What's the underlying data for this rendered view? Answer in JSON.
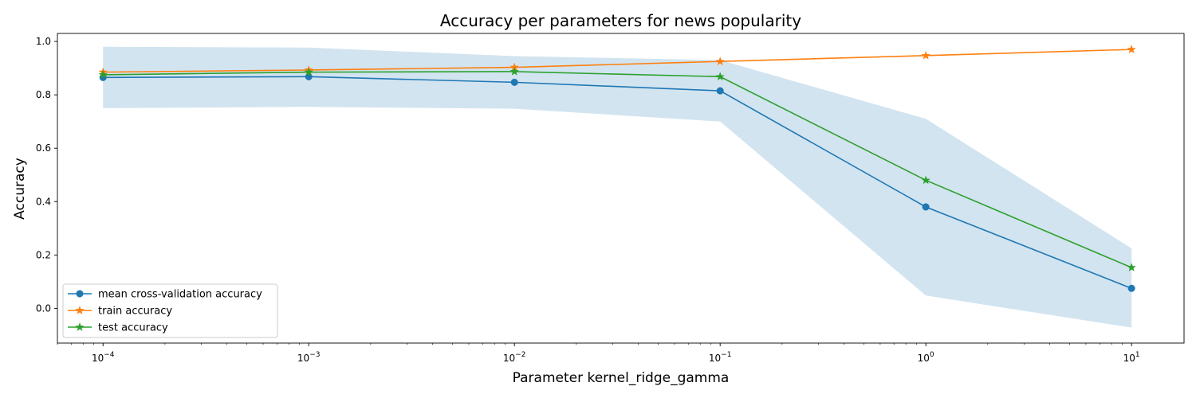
{
  "chart_data": {
    "type": "line",
    "title": "Accuracy per parameters for news popularity",
    "xlabel": "Parameter kernel_ridge_gamma",
    "ylabel": "Accuracy",
    "xscale": "log",
    "x": [
      0.0001,
      0.001,
      0.01,
      0.1,
      1,
      10
    ],
    "x_tick_labels": [
      {
        "base": "10",
        "exp": "−4"
      },
      {
        "base": "10",
        "exp": "−3"
      },
      {
        "base": "10",
        "exp": "−2"
      },
      {
        "base": "10",
        "exp": "−1"
      },
      {
        "base": "10",
        "exp": "0"
      },
      {
        "base": "10",
        "exp": "1"
      }
    ],
    "y_ticks": [
      "0.0",
      "0.2",
      "0.4",
      "0.6",
      "0.8",
      "1.0"
    ],
    "xlim": [
      6e-05,
      18
    ],
    "ylim": [
      -0.13,
      1.03
    ],
    "grid": false,
    "legend_position": "lower-left",
    "band": {
      "lower": [
        0.75,
        0.755,
        0.748,
        0.7,
        0.048,
        -0.072
      ],
      "upper": [
        0.98,
        0.977,
        0.945,
        0.93,
        0.71,
        0.225
      ],
      "color": "#1f77b4"
    },
    "series": [
      {
        "name": "mean cross-validation accuracy",
        "values": [
          0.865,
          0.868,
          0.847,
          0.815,
          0.38,
          0.075
        ],
        "color": "#1f77b4",
        "marker": "circle"
      },
      {
        "name": "train accuracy",
        "values": [
          0.885,
          0.893,
          0.903,
          0.925,
          0.947,
          0.97
        ],
        "color": "#ff7f0e",
        "marker": "star"
      },
      {
        "name": "test accuracy",
        "values": [
          0.875,
          0.885,
          0.887,
          0.868,
          0.48,
          0.153
        ],
        "color": "#2ca02c",
        "marker": "star"
      }
    ]
  }
}
